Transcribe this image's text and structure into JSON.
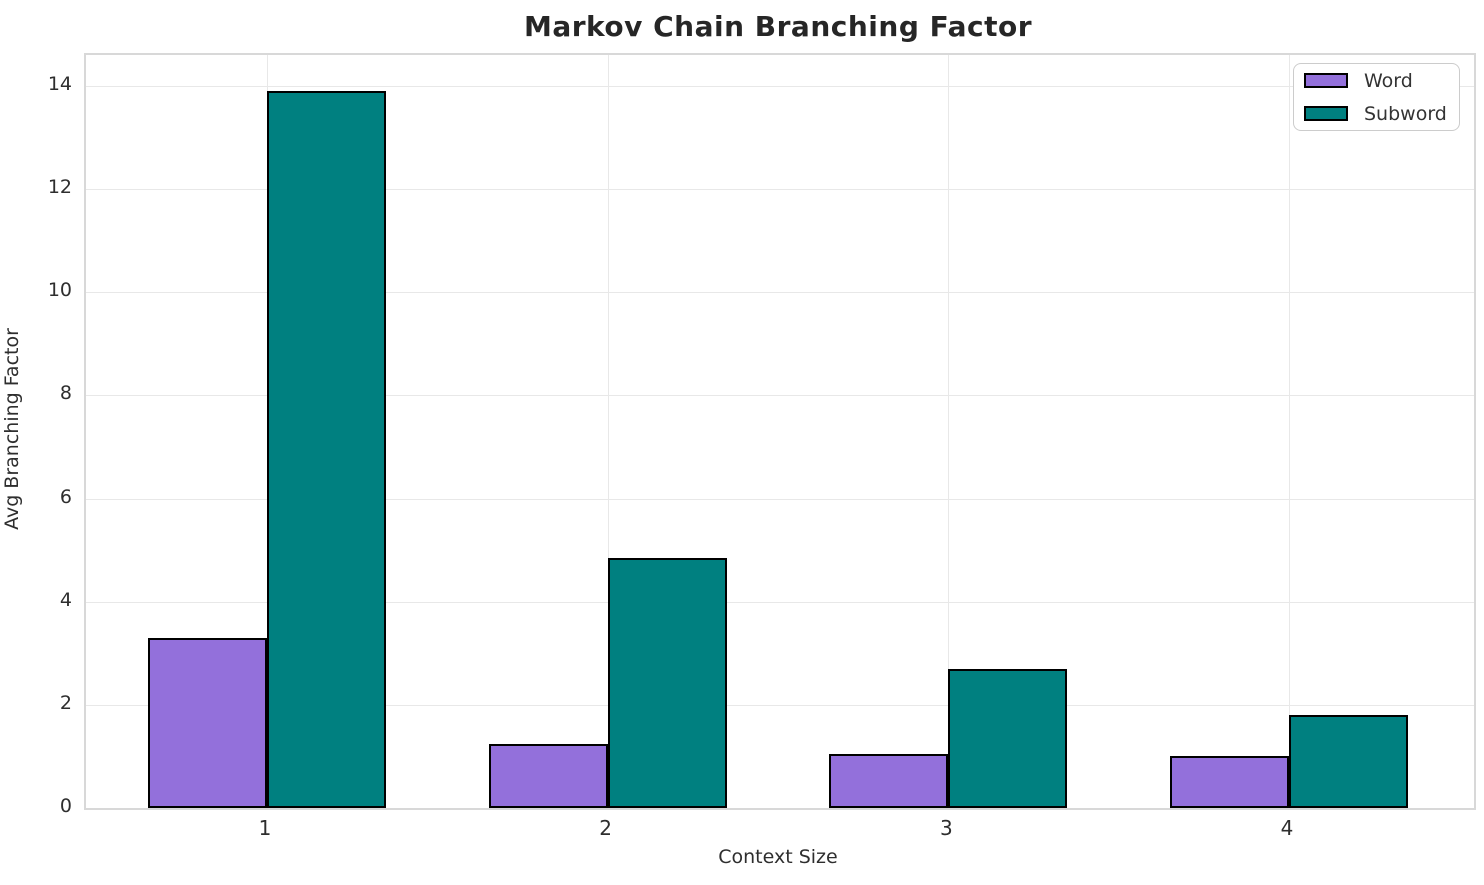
{
  "chart_data": {
    "type": "bar",
    "title": "Markov Chain Branching Factor",
    "xlabel": "Context Size",
    "ylabel": "Avg Branching Factor",
    "categories": [
      "1",
      "2",
      "3",
      "4"
    ],
    "series": [
      {
        "name": "Word",
        "color": "#9370DB",
        "values": [
          3.3,
          1.25,
          1.05,
          1.0
        ]
      },
      {
        "name": "Subword",
        "color": "#008080",
        "values": [
          13.9,
          4.85,
          2.7,
          1.8
        ]
      }
    ],
    "bar_edge_color": "#000000",
    "ylim": [
      0,
      14.6
    ],
    "yticks": [
      0,
      2,
      4,
      6,
      8,
      10,
      12,
      14
    ],
    "grid": true,
    "legend_position": "upper right",
    "background_color": "#ffffff",
    "grid_color": "#e8e8e8",
    "text_color": "#2e2e2e"
  }
}
